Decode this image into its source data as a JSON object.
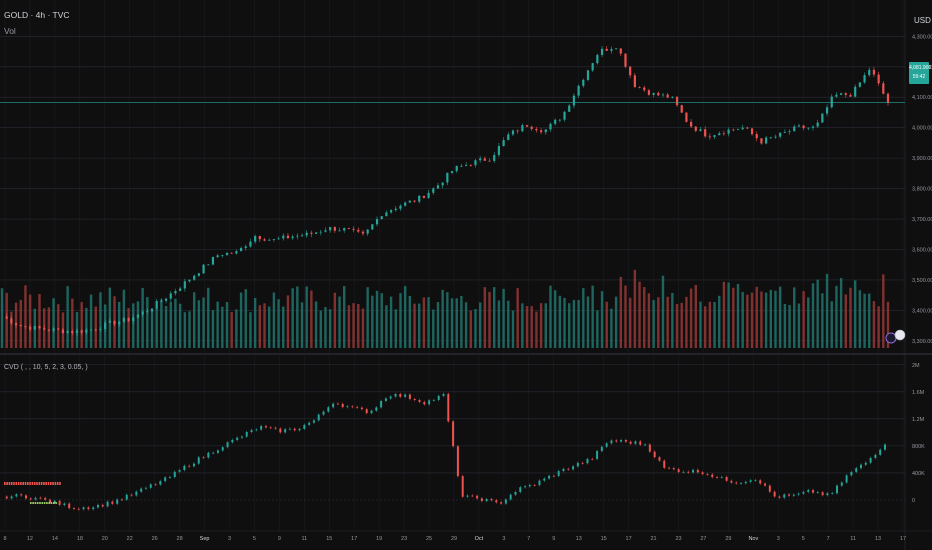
{
  "chart_data": [
    {
      "type": "line",
      "title": "GOLD · 4h · TVC",
      "subtitle": "Vol",
      "currency": "USD",
      "y_tick_labels": [
        "4,300.000",
        "4,200.000",
        "4,100.000",
        "4,000.000",
        "3,900.000",
        "3,800.000",
        "3,700.000",
        "3,600.000",
        "3,500.000",
        "3,400.000",
        "3,300.000"
      ],
      "ylim": [
        3270,
        4370
      ],
      "last_price_label": [
        "4,081.900",
        "59:42"
      ],
      "last_price": 4082,
      "series": [
        {
          "values_by_date": [
            [
              "Aug 8",
              3380
            ],
            [
              "Aug 12",
              3350
            ],
            [
              "Aug 14",
              3340
            ],
            [
              "Aug 16",
              3335
            ],
            [
              "Aug 20",
              3330
            ],
            [
              "Aug 22",
              3338
            ],
            [
              "Aug 24",
              3358
            ],
            [
              "Aug 26",
              3370
            ],
            [
              "Aug 28",
              3400
            ],
            [
              "Aug 29",
              3440
            ],
            [
              "Sep 1",
              3485
            ],
            [
              "Sep 3",
              3535
            ],
            [
              "Sep 5",
              3585
            ],
            [
              "Sep 7",
              3590
            ],
            [
              "Sep 9",
              3645
            ],
            [
              "Sep 11",
              3630
            ],
            [
              "Sep 13",
              3643
            ],
            [
              "Sep 15",
              3650
            ],
            [
              "Sep 17",
              3670
            ],
            [
              "Sep 19",
              3665
            ],
            [
              "Sep 21",
              3645
            ],
            [
              "Sep 23",
              3718
            ],
            [
              "Sep 25",
              3745
            ],
            [
              "Sep 27",
              3765
            ],
            [
              "Sep 29",
              3805
            ],
            [
              "Oct 1",
              3865
            ],
            [
              "Oct 3",
              3885
            ],
            [
              "Oct 5",
              3900
            ],
            [
              "Oct 7",
              3975
            ],
            [
              "Oct 9",
              4010
            ],
            [
              "Oct 11",
              3990
            ],
            [
              "Oct 13",
              4040
            ],
            [
              "Oct 15",
              4150
            ],
            [
              "Oct 17",
              4250
            ],
            [
              "Oct 19",
              4270
            ],
            [
              "Oct 21",
              4140
            ],
            [
              "Oct 23",
              4110
            ],
            [
              "Oct 25",
              4100
            ],
            [
              "Oct 27",
              4010
            ],
            [
              "Oct 29",
              3975
            ],
            [
              "Oct 31",
              3990
            ],
            [
              "Nov 2",
              4000
            ],
            [
              "Nov 4",
              3955
            ],
            [
              "Nov 6",
              3975
            ],
            [
              "Nov 8",
              4000
            ],
            [
              "Nov 10",
              4000
            ],
            [
              "Nov 12",
              4105
            ],
            [
              "Nov 13",
              4110
            ],
            [
              "Nov 14",
              4195
            ],
            [
              "Nov 15",
              4082
            ]
          ]
        }
      ]
    },
    {
      "type": "bar",
      "title": "Vol",
      "note": "volume bars, relative heights"
    },
    {
      "type": "line",
      "title": "CVD ( , , 10, 5, 2, 3, 0.05, )",
      "y_tick_labels": [
        "2M",
        "1.6M",
        "1.2M",
        "800K",
        "400K",
        "0"
      ],
      "ylim": [
        -400000,
        2100000
      ],
      "series": [
        {
          "values_by_date": [
            [
              "Aug 8",
              50000
            ],
            [
              "Aug 12",
              60000
            ],
            [
              "Aug 14",
              20000
            ],
            [
              "Aug 16",
              -50000
            ],
            [
              "Aug 20",
              -120000
            ],
            [
              "Aug 22",
              -100000
            ],
            [
              "Aug 24",
              -30000
            ],
            [
              "Aug 26",
              70000
            ],
            [
              "Aug 28",
              200000
            ],
            [
              "Aug 29",
              320000
            ],
            [
              "Sep 1",
              500000
            ],
            [
              "Sep 3",
              650000
            ],
            [
              "Sep 5",
              800000
            ],
            [
              "Sep 7",
              940000
            ],
            [
              "Sep 9",
              1080000
            ],
            [
              "Sep 11",
              1020000
            ],
            [
              "Sep 13",
              1050000
            ],
            [
              "Sep 15",
              1180000
            ],
            [
              "Sep 17",
              1450000
            ],
            [
              "Sep 19",
              1360000
            ],
            [
              "Sep 21",
              1300000
            ],
            [
              "Sep 23",
              1560000
            ],
            [
              "Sep 25",
              1530000
            ],
            [
              "Sep 27",
              1440000
            ],
            [
              "Sep 29",
              1550000
            ],
            [
              "Oct 1",
              50000
            ],
            [
              "Oct 3",
              20000
            ],
            [
              "Oct 5",
              -60000
            ],
            [
              "Oct 7",
              150000
            ],
            [
              "Oct 9",
              240000
            ],
            [
              "Oct 11",
              380000
            ],
            [
              "Oct 13",
              500000
            ],
            [
              "Oct 15",
              600000
            ],
            [
              "Oct 17",
              880000
            ],
            [
              "Oct 19",
              860000
            ],
            [
              "Oct 21",
              820000
            ],
            [
              "Oct 23",
              470000
            ],
            [
              "Oct 25",
              430000
            ],
            [
              "Oct 27",
              420000
            ],
            [
              "Oct 29",
              320000
            ],
            [
              "Oct 31",
              260000
            ],
            [
              "Nov 2",
              320000
            ],
            [
              "Nov 4",
              50000
            ],
            [
              "Nov 6",
              60000
            ],
            [
              "Nov 8",
              130000
            ],
            [
              "Nov 10",
              60000
            ],
            [
              "Nov 12",
              380000
            ],
            [
              "Nov 13",
              560000
            ],
            [
              "Nov 14",
              840000
            ]
          ]
        }
      ]
    }
  ],
  "x_axis_labels": [
    "8",
    "12",
    "14",
    "18",
    "20",
    "22",
    "26",
    "28",
    "Sep",
    "3",
    "5",
    "9",
    "11",
    "15",
    "17",
    "19",
    "23",
    "25",
    "29",
    "Oct",
    "3",
    "7",
    "9",
    "13",
    "15",
    "17",
    "21",
    "23",
    "27",
    "29",
    "Nov",
    "3",
    "5",
    "7",
    "11",
    "13",
    "17"
  ],
  "colors": {
    "background": "#0f0f0f",
    "grid": "#2a2e39",
    "up": "#26a69a",
    "down": "#ef5350",
    "price_line": "#26a69a",
    "text": "#d1d4dc"
  }
}
